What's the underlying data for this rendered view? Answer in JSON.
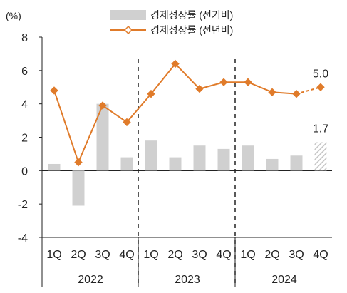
{
  "chart_data": {
    "type": "bar+line",
    "unit_label": "(%)",
    "ylim": [
      -4,
      8
    ],
    "y_ticks": [
      "-4",
      "-2",
      "0",
      "2",
      "4",
      "6",
      "8"
    ],
    "quarters": [
      "1Q",
      "2Q",
      "3Q",
      "4Q",
      "1Q",
      "2Q",
      "3Q",
      "4Q",
      "1Q",
      "2Q",
      "3Q",
      "4Q"
    ],
    "years": [
      "2022",
      "2023",
      "2024"
    ],
    "series": [
      {
        "name": "경제성장률 (전기비)",
        "kind": "bar",
        "color": "#d0d0d0",
        "values": [
          0.4,
          -2.1,
          4.0,
          0.8,
          1.8,
          0.8,
          1.5,
          1.3,
          1.5,
          0.7,
          0.9,
          1.7
        ],
        "forecast_from_index": 11,
        "forecast_pattern": "hatched"
      },
      {
        "name": "경제성장률 (전년비)",
        "kind": "line",
        "color": "#e07b2a",
        "marker": "diamond",
        "values": [
          4.8,
          0.5,
          3.9,
          2.9,
          4.6,
          6.4,
          4.9,
          5.3,
          5.3,
          4.7,
          4.6,
          5.0
        ],
        "dashed_from_index": 10
      }
    ],
    "data_labels": [
      {
        "series": 1,
        "index": 11,
        "text": "5.0"
      },
      {
        "series": 0,
        "index": 11,
        "text": "1.7"
      }
    ],
    "year_dividers": "dashed vertical lines between 2022/2023 and 2023/2024",
    "grid": false,
    "legend_position": "top"
  }
}
